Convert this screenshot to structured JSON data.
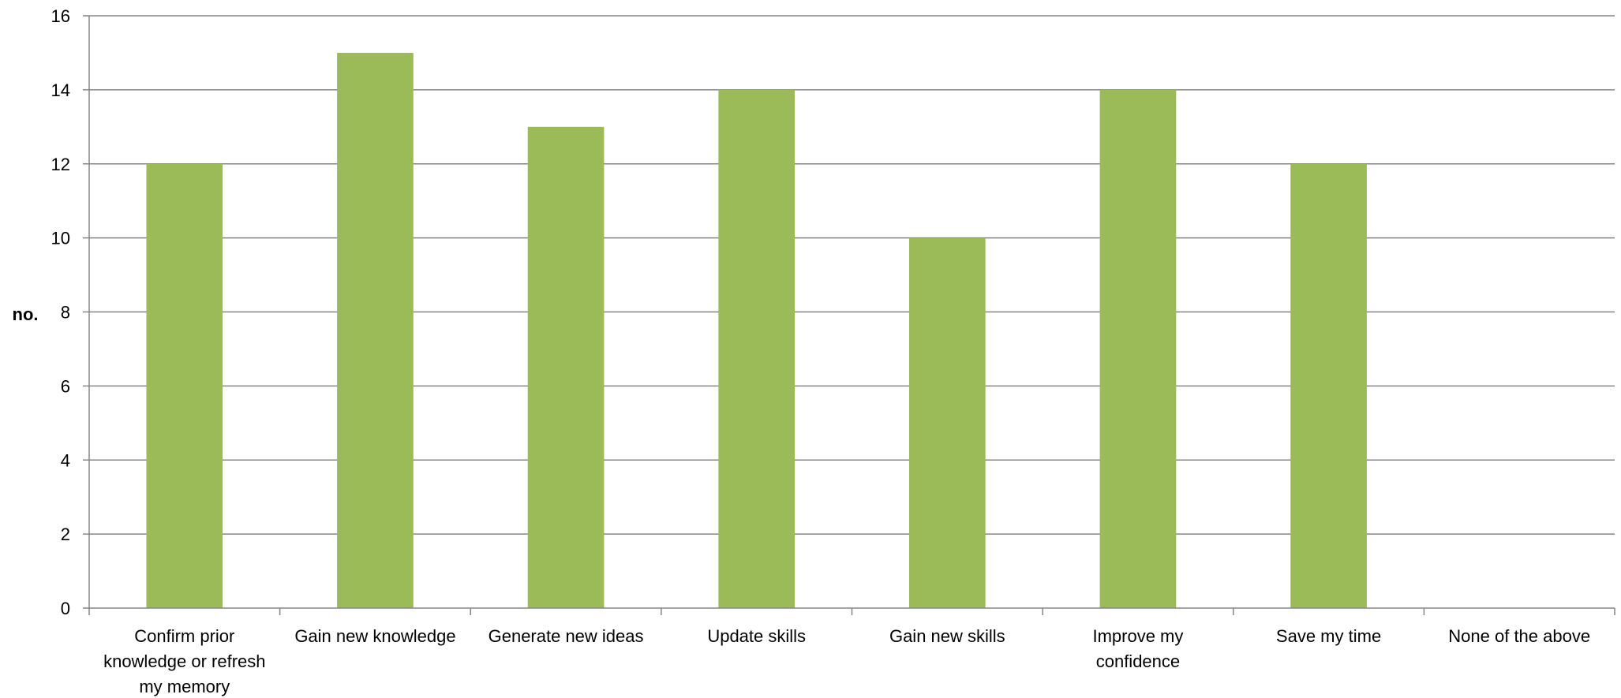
{
  "chart_data": {
    "type": "bar",
    "title": "",
    "xlabel": "",
    "ylabel": "no.",
    "ylim": [
      0,
      16
    ],
    "yticks": [
      0,
      2,
      4,
      6,
      8,
      10,
      12,
      14,
      16
    ],
    "grid": true,
    "legend": "none",
    "bar_color": "#9BBB59",
    "categories": [
      [
        "Confirm prior",
        "knowledge or refresh",
        "my memory"
      ],
      [
        "Gain new knowledge"
      ],
      [
        "Generate new ideas"
      ],
      [
        "Update skills"
      ],
      [
        "Gain new skills"
      ],
      [
        "Improve my",
        "confidence"
      ],
      [
        "Save my time"
      ],
      [
        "None of the above"
      ]
    ],
    "values": [
      12,
      15,
      13,
      14,
      10,
      14,
      12,
      0
    ]
  }
}
